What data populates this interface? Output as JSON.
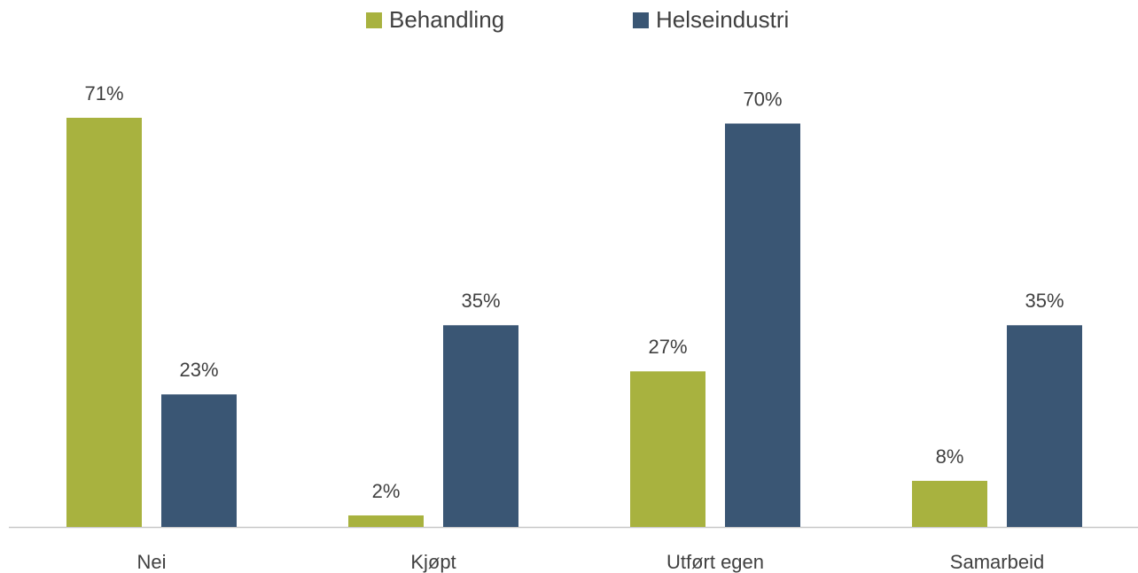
{
  "chart_data": {
    "type": "bar",
    "categories": [
      "Nei",
      "Kjøpt",
      "Utført egen",
      "Samarbeid"
    ],
    "series": [
      {
        "name": "Behandling",
        "color": "#a8b23f",
        "values": [
          71,
          2,
          27,
          8
        ],
        "value_labels": [
          "71%",
          "2%",
          "27%",
          "8%"
        ]
      },
      {
        "name": "Helseindustri",
        "color": "#3a5674",
        "values": [
          23,
          35,
          70,
          35
        ],
        "value_labels": [
          "23%",
          "35%",
          "70%",
          "35%"
        ]
      }
    ],
    "legend": "top"
  }
}
